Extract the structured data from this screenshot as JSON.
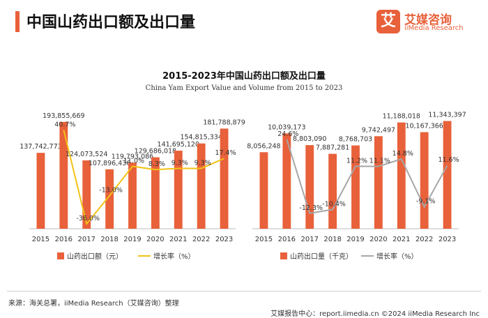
{
  "header": {
    "title": "中国山药出口额及出口量"
  },
  "logo": {
    "mark": "艾",
    "name_cn": "艾媒咨询",
    "name_en": "iiMedia Research"
  },
  "colors": {
    "bar": "#e8613a",
    "line_left": "#f2c216",
    "line_right": "#a6a6a6",
    "accent": "#e8613a"
  },
  "chart_data": [
    {
      "type": "bar",
      "title": "2015-2023年中国山药出口额及出口量",
      "subtitle": "China Yam Export Value and Volume from 2015 to 2023",
      "categories": [
        "2015",
        "2016",
        "2017",
        "2018",
        "2019",
        "2020",
        "2021",
        "2022",
        "2023"
      ],
      "series": [
        {
          "name": "山药出口额（元）",
          "type": "bar",
          "values": [
            137742773,
            193855669,
            124073524,
            107896436,
            119793086,
            129686018,
            141695120,
            154815334,
            181788879
          ],
          "labels": [
            "137,742,773",
            "193,855,669",
            "124,073,524",
            "107,896,436",
            "119,793,086",
            "129,686,018",
            "141,695,120",
            "154,815,334",
            "181,788,879"
          ]
        },
        {
          "name": "增长率（%）",
          "type": "line",
          "values": [
            null,
            40.7,
            -36.0,
            -13.0,
            11.0,
            8.3,
            9.3,
            9.3,
            17.4
          ],
          "labels": [
            "",
            "40.7%",
            "-36.0%",
            "-13.0%",
            "11.0%",
            "8.3%",
            "9.3%",
            "9.3%",
            "17.4%"
          ]
        }
      ],
      "ylim": [
        0,
        200000000
      ],
      "growth_range": [
        -40,
        50
      ]
    },
    {
      "type": "bar",
      "categories": [
        "2015",
        "2016",
        "2017",
        "2018",
        "2019",
        "2020",
        "2021",
        "2022",
        "2023"
      ],
      "series": [
        {
          "name": "山药出口量（千克）",
          "type": "bar",
          "values": [
            8056248,
            10039173,
            8803090,
            7887281,
            8768703,
            9742497,
            11188018,
            10167366,
            11343397
          ],
          "labels": [
            "8,056,248",
            "10,039,173",
            "8,803,090",
            "7,887,281",
            "8,768,703",
            "9,742,497",
            "11,188,018",
            "10,167,366",
            "11,343,397"
          ]
        },
        {
          "name": "增长率（%）",
          "type": "line",
          "values": [
            null,
            24.6,
            -12.3,
            -10.4,
            11.2,
            11.1,
            14.8,
            -9.1,
            11.6
          ],
          "labels": [
            "",
            "24.6%",
            "-12.3%",
            "-10.4%",
            "11.2%",
            "11.1%",
            "14.8%",
            "-9.1%",
            "11.6%"
          ]
        }
      ],
      "ylim": [
        0,
        11600000
      ],
      "growth_range": [
        -20,
        35
      ]
    }
  ],
  "footer": {
    "source": "来源：海关总署，iiMedia Research（艾媒咨询）整理",
    "right": "艾媒报告中心：report.iimedia.cn    ©2024  iiMedia Research  Inc"
  }
}
